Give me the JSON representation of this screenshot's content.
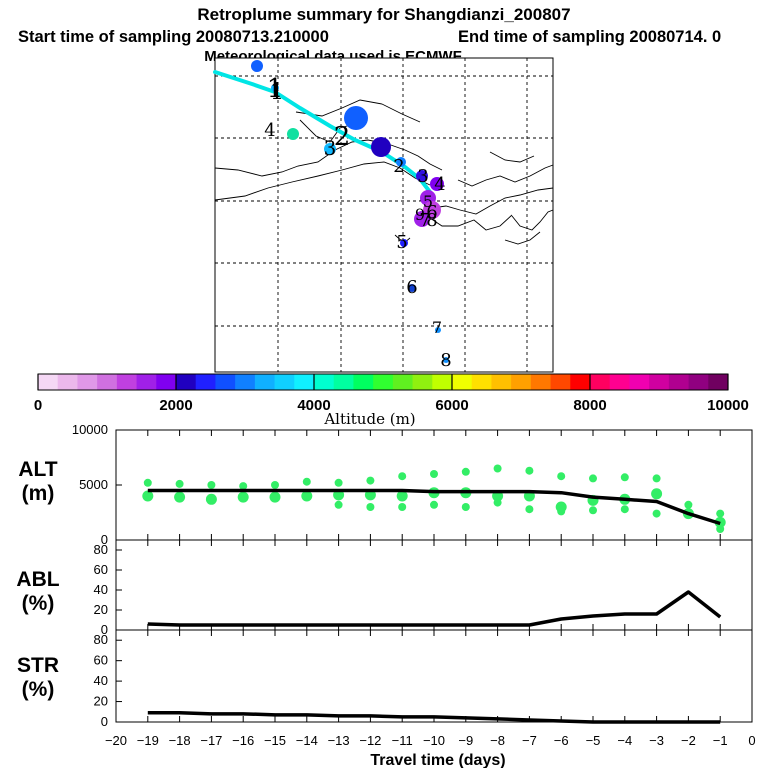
{
  "title": {
    "line1": "Retroplume summary for Shangdianzi_200807",
    "start": "Start time of sampling 20080713.210000",
    "end": "End time of sampling 20080714.     0",
    "met": "Meteorological data used is ECMWF"
  },
  "colors": {
    "trajectory": "#00e5e5",
    "alt_dots": "#33ee66",
    "line": "#000000",
    "colorbar": [
      "#f5d8f5",
      "#ecb8ec",
      "#e098e8",
      "#d070e0",
      "#c040e0",
      "#a020e8",
      "#8000f0",
      "#2000c0",
      "#2020ff",
      "#1050ff",
      "#1080ff",
      "#10b0ff",
      "#10d0ff",
      "#10f0ff",
      "#00ffd0",
      "#00ffa0",
      "#00ff60",
      "#30ff30",
      "#60f020",
      "#90f010",
      "#c0ff00",
      "#f0ff00",
      "#ffe000",
      "#ffc000",
      "#ffa000",
      "#ff7800",
      "#ff4800",
      "#ff0000",
      "#ff0060",
      "#ff0090",
      "#f000b0",
      "#d000a0",
      "#b00090",
      "#900080",
      "#700060"
    ]
  },
  "map": {
    "day_labels": [
      {
        "t": "1",
        "c": "#000000"
      },
      {
        "t": "2",
        "c": "#000000"
      },
      {
        "t": "3",
        "c": "#000000"
      },
      {
        "t": "4",
        "c": "#3070d0"
      },
      {
        "t": "5",
        "c": "#1060ff"
      },
      {
        "t": "6",
        "c": "#1040d0"
      },
      {
        "t": "7",
        "c": "#1090ff"
      },
      {
        "t": "8",
        "c": "#1090ff"
      },
      {
        "t": "1",
        "c": "#000000"
      },
      {
        "t": "2",
        "c": "#000000"
      },
      {
        "t": "3",
        "c": "#000000"
      },
      {
        "t": "4",
        "c": "#000000"
      },
      {
        "t": "5",
        "c": "#000000"
      },
      {
        "t": "6",
        "c": "#000000"
      },
      {
        "t": "7",
        "c": "#000000"
      },
      {
        "t": "8",
        "c": "#000000"
      },
      {
        "t": "9",
        "c": "#000000"
      }
    ]
  },
  "colorbar": {
    "min": 0,
    "max": 10000,
    "ticks": [
      "0",
      "2000",
      "4000",
      "6000",
      "8000",
      "10000"
    ],
    "label": "Altitude (m)"
  },
  "panels": {
    "alt": {
      "label1": "ALT",
      "label2": "(m)",
      "yticks": [
        "0",
        "5000",
        "10000"
      ]
    },
    "abl": {
      "label1": "ABL",
      "label2": "(%)",
      "yticks": [
        "0",
        "20",
        "40",
        "60",
        "80"
      ]
    },
    "str": {
      "label1": "STR",
      "label2": "(%)",
      "yticks": [
        "0",
        "20",
        "40",
        "60",
        "80"
      ]
    }
  },
  "xaxis": {
    "label": "Travel time (days)",
    "ticks": [
      "−20",
      "−19",
      "−18",
      "−17",
      "−16",
      "−15",
      "−14",
      "−13",
      "−12",
      "−11",
      "−10",
      "−9",
      "−8",
      "−7",
      "−6",
      "−5",
      "−4",
      "−3",
      "−2",
      "−1",
      "0"
    ]
  },
  "chart_data": [
    {
      "type": "line",
      "title": "ALT",
      "xlabel": "Travel time (days)",
      "ylabel": "ALT (m)",
      "xlim": [
        -20,
        0
      ],
      "ylim": [
        0,
        10000
      ],
      "x": [
        -19,
        -18,
        -17,
        -16,
        -15,
        -14,
        -13,
        -12,
        -11,
        -10,
        -9,
        -8,
        -7,
        -6,
        -5,
        -4,
        -3,
        -2,
        -1
      ],
      "values": [
        4500,
        4500,
        4500,
        4500,
        4500,
        4500,
        4500,
        4500,
        4500,
        4400,
        4400,
        4400,
        4400,
        4300,
        3900,
        3700,
        3500,
        2400,
        1500
      ]
    },
    {
      "type": "line",
      "title": "ABL",
      "xlabel": "Travel time (days)",
      "ylabel": "ABL (%)",
      "xlim": [
        -20,
        0
      ],
      "ylim": [
        0,
        90
      ],
      "x": [
        -19,
        -18,
        -17,
        -16,
        -15,
        -14,
        -13,
        -12,
        -11,
        -10,
        -9,
        -8,
        -7,
        -6,
        -5,
        -4,
        -3,
        -2,
        -1
      ],
      "values": [
        6,
        5,
        5,
        5,
        5,
        5,
        5,
        5,
        5,
        5,
        5,
        5,
        5,
        11,
        14,
        16,
        16,
        38,
        13
      ]
    },
    {
      "type": "line",
      "title": "STR",
      "xlabel": "Travel time (days)",
      "ylabel": "STR (%)",
      "xlim": [
        -20,
        0
      ],
      "ylim": [
        0,
        90
      ],
      "x": [
        -19,
        -18,
        -17,
        -16,
        -15,
        -14,
        -13,
        -12,
        -11,
        -10,
        -9,
        -8,
        -7,
        -6,
        -5,
        -4,
        -3,
        -2,
        -1
      ],
      "values": [
        9,
        9,
        8,
        8,
        7,
        7,
        6,
        6,
        5,
        5,
        4,
        3,
        2,
        1,
        0,
        0,
        0,
        0,
        0
      ]
    }
  ]
}
